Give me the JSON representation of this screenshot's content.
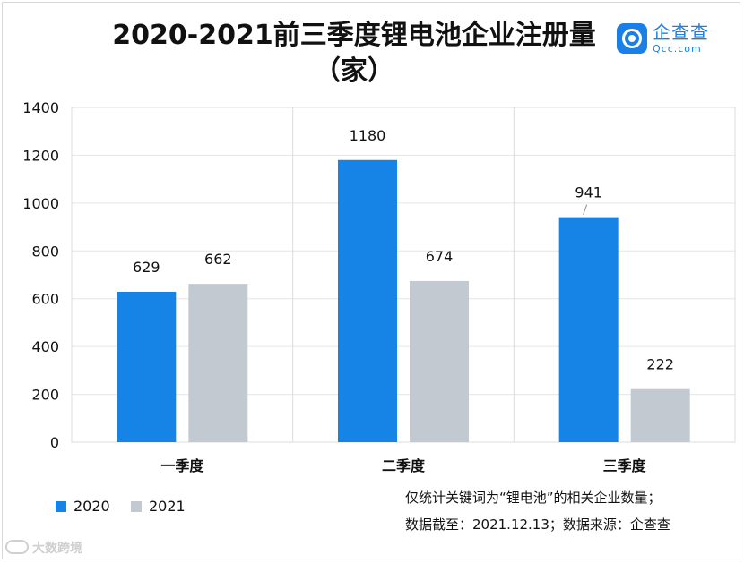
{
  "title_line1": "2020-2021前三季度锂电池企业注册量",
  "title_line2": "（家）",
  "brand": {
    "name": "企查查",
    "domain": "Qcc.com",
    "color": "#1b7fe8"
  },
  "notes": [
    "仅统计关键词为“锂电池”的相关企业数量；",
    "数据截至：2021.12.13；数据来源：企查查"
  ],
  "watermark": "大数跨境",
  "chart_data": {
    "type": "bar",
    "title": "2020-2021前三季度锂电池企业注册量（家）",
    "categories": [
      "一季度",
      "二季度",
      "三季度"
    ],
    "series": [
      {
        "name": "2020",
        "values": [
          629,
          1180,
          941
        ],
        "color": "#1584e6"
      },
      {
        "name": "2021",
        "values": [
          662,
          674,
          222
        ],
        "color": "#c2c9d1"
      }
    ],
    "yticks": [
      0,
      200,
      400,
      600,
      800,
      1000,
      1200,
      1400
    ],
    "ylim": [
      0,
      1400
    ],
    "xlabel": "",
    "ylabel": "",
    "grid": true,
    "legend": "bottom-left"
  }
}
